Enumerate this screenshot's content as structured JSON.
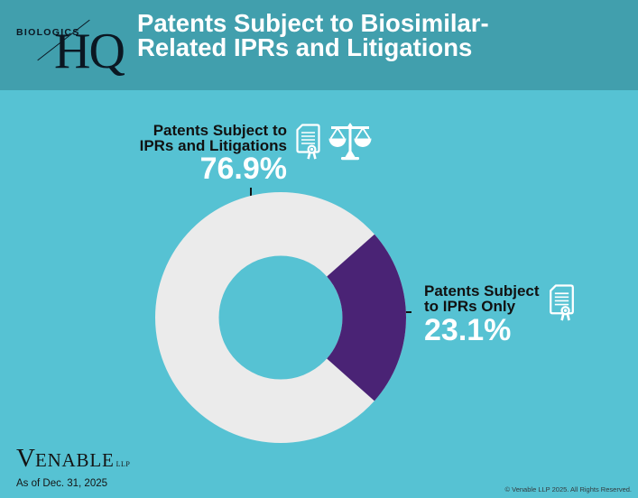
{
  "header": {
    "logo": {
      "biologics": "BIOLOGICS",
      "hq": "HQ"
    },
    "title": "Patents Subject to Biosimilar-\nRelated IPRs and Litigations"
  },
  "callouts": [
    {
      "label": "Patents Subject to\nIPRs and Litigations",
      "value_label": "76.9%",
      "icons": [
        "document-seal-icon",
        "scales-icon"
      ]
    },
    {
      "label": "Patents Subject\nto IPRs Only",
      "value_label": "23.1%",
      "icons": [
        "document-seal-icon"
      ]
    }
  ],
  "chart_data": {
    "type": "pie",
    "subtype": "donut",
    "title": "Patents Subject to Biosimilar-Related IPRs and Litigations",
    "labels": [
      "Patents Subject to IPRs and Litigations",
      "Patents Subject to IPRs Only"
    ],
    "values": [
      76.9,
      23.1
    ],
    "unit": "%",
    "colors": [
      "#ebebeb",
      "#4a2375"
    ],
    "minor_slice_center_clock_position": "3 o'clock",
    "legend_position": "callouts with leader lines",
    "as_of": "As of Dec. 31, 2025"
  },
  "colors": {
    "header_bg": "#419fad",
    "body_bg": "#56c2d3",
    "slice_major": "#ebebeb",
    "slice_minor": "#4a2375",
    "title_text": "#ffffff",
    "label_text": "#111111"
  },
  "footer": {
    "venable_v": "V",
    "venable_rest": "ENABLE",
    "venable_llp": "LLP",
    "as_of": "As of Dec. 31, 2025",
    "copyright": "© Venable LLP 2025. All Rights Reserved."
  }
}
